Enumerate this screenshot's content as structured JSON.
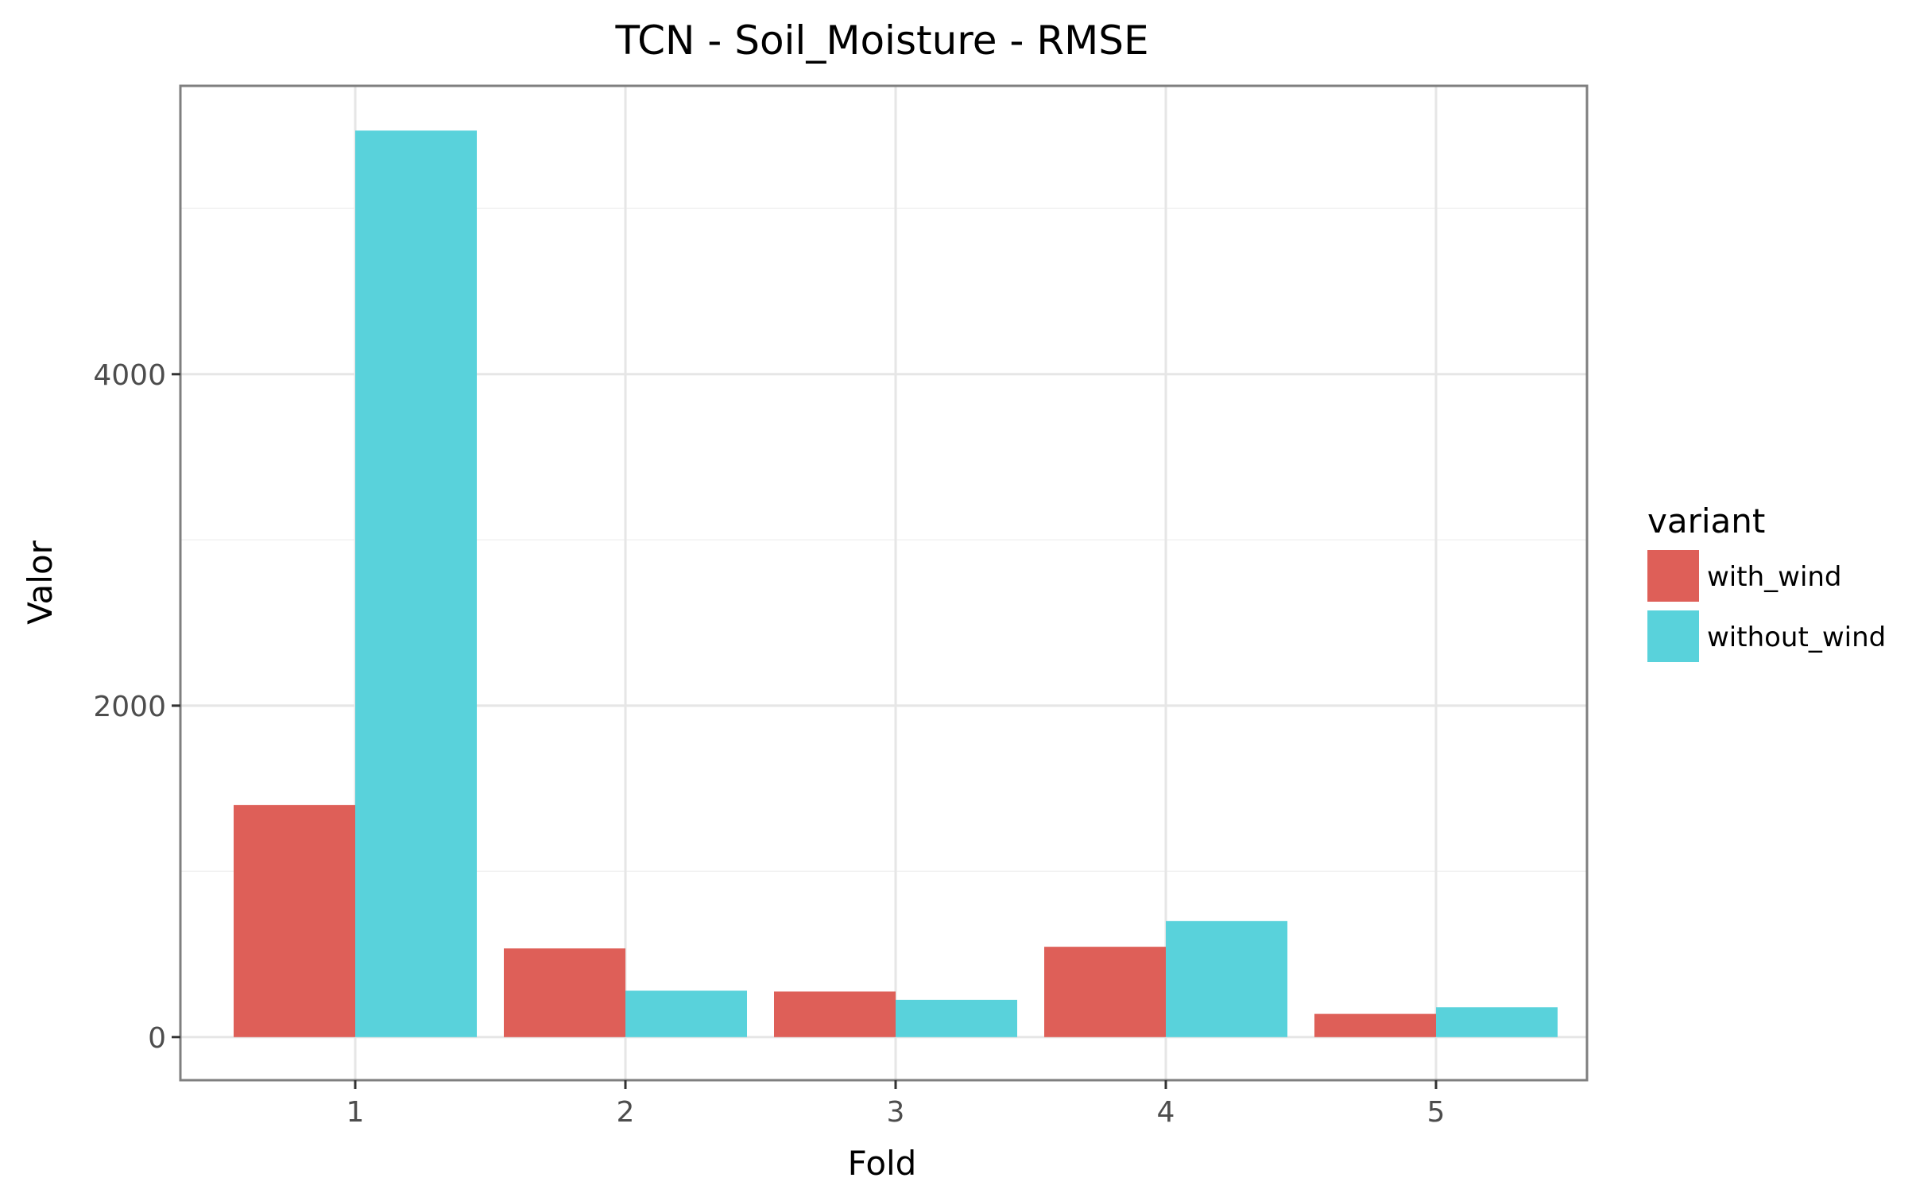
{
  "chart_data": {
    "type": "bar",
    "title": "TCN - Soil_Moisture - RMSE",
    "xlabel": "Fold",
    "ylabel": "Valor",
    "categories": [
      "1",
      "2",
      "3",
      "4",
      "5"
    ],
    "series": [
      {
        "name": "with_wind",
        "color": "#DE5F58",
        "values": [
          1400,
          535,
          275,
          545,
          140
        ]
      },
      {
        "name": "without_wind",
        "color": "#59D2DB",
        "values": [
          5470,
          280,
          225,
          700,
          180
        ]
      }
    ],
    "yticks": [
      0,
      2000,
      4000
    ],
    "ytick_labels": [
      "0",
      "2000",
      "4000"
    ],
    "ylim": [
      -260,
      5740
    ],
    "grid": true,
    "legend": {
      "title": "variant",
      "position": "right"
    }
  }
}
